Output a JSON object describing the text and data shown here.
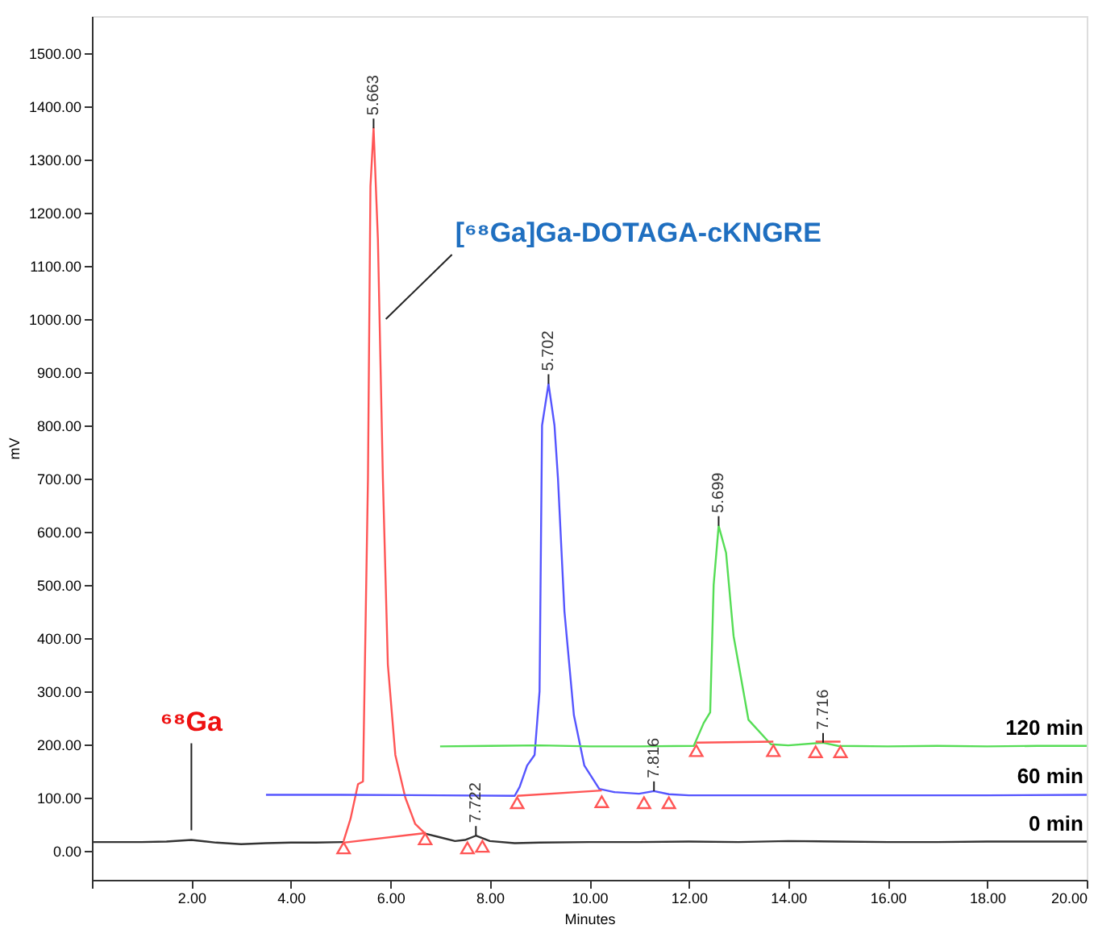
{
  "chart_data": {
    "type": "line",
    "xlabel": "Minutes",
    "ylabel": "mV",
    "xlim": [
      0,
      20
    ],
    "ylim": [
      -55,
      1570
    ],
    "xticks": [
      {
        "value": 0,
        "label": null
      },
      {
        "value": 2,
        "label": "2.00"
      },
      {
        "value": 4,
        "label": "4.00"
      },
      {
        "value": 6,
        "label": "6.00"
      },
      {
        "value": 8,
        "label": "8.00"
      },
      {
        "value": 10,
        "label": "10.00"
      },
      {
        "value": 12,
        "label": "12.00"
      },
      {
        "value": 14,
        "label": "14.00"
      },
      {
        "value": 16,
        "label": "16.00"
      },
      {
        "value": 18,
        "label": "18.00"
      },
      {
        "value": 20,
        "label": "20.00"
      }
    ],
    "yticks": [
      {
        "value": 0,
        "label": "0.00"
      },
      {
        "value": 100,
        "label": "100.00"
      },
      {
        "value": 200,
        "label": "200.00"
      },
      {
        "value": 300,
        "label": "300.00"
      },
      {
        "value": 400,
        "label": "400.00"
      },
      {
        "value": 500,
        "label": "500.00"
      },
      {
        "value": 600,
        "label": "600.00"
      },
      {
        "value": 700,
        "label": "700.00"
      },
      {
        "value": 800,
        "label": "800.00"
      },
      {
        "value": 900,
        "label": "900.00"
      },
      {
        "value": 1000,
        "label": "1000.00"
      },
      {
        "value": 1100,
        "label": "1100.00"
      },
      {
        "value": 1200,
        "label": "1200.00"
      },
      {
        "value": 1300,
        "label": "1300.00"
      },
      {
        "value": 1400,
        "label": "1400.00"
      },
      {
        "value": 1500,
        "label": "1500.00"
      }
    ],
    "grid": false,
    "line_style": "solid",
    "series": [
      {
        "name": "0 min",
        "color": "#333333",
        "x": [
          0,
          0.5,
          1,
          1.5,
          2,
          2.5,
          3,
          3.5,
          4,
          4.5,
          5.06,
          5.8,
          6.7,
          7.0,
          7.3,
          7.5,
          7.72,
          8.0,
          8.5,
          9,
          10,
          11,
          12,
          13,
          14,
          15,
          16,
          17,
          18,
          19,
          20
        ],
        "values": [
          16,
          16,
          16,
          17,
          20,
          15,
          12,
          14,
          15,
          15,
          16,
          null,
          32,
          25,
          18,
          20,
          28,
          18,
          14,
          15,
          16,
          16,
          17,
          16,
          18,
          17,
          16,
          16,
          17,
          17,
          17
        ]
      },
      {
        "color": "#ff5555",
        "x": [
          5.06,
          5.2,
          5.35,
          5.45,
          5.55,
          5.6,
          5.663,
          5.75,
          5.85,
          5.95,
          6.1,
          6.3,
          6.5,
          6.7
        ],
        "values": [
          18,
          60,
          125,
          130,
          700,
          1250,
          1359,
          1150,
          700,
          350,
          180,
          100,
          50,
          32
        ]
      },
      {
        "name": "60 min",
        "color": "#5555ff",
        "x": [
          3.5,
          5,
          7,
          8.5,
          8.6,
          8.75,
          8.9,
          9.0,
          9.05,
          9.18,
          9.3,
          9.37,
          9.5,
          9.69,
          9.9,
          10.2,
          10.5,
          11,
          11.3,
          11.6,
          12,
          14,
          16,
          18,
          20
        ],
        "values": [
          105,
          105,
          104,
          103,
          120,
          160,
          180,
          300,
          800,
          878,
          800,
          700,
          450,
          255,
          160,
          116,
          110,
          107,
          112,
          106,
          104,
          104,
          104,
          104,
          105
        ]
      },
      {
        "name": "120 min",
        "color": "#55dd55",
        "x": [
          7,
          8,
          9,
          10,
          11,
          12.1,
          12.3,
          12.43,
          12.5,
          12.6,
          12.75,
          12.9,
          13.2,
          13.65,
          14,
          14.7,
          15,
          16,
          17,
          18,
          19,
          20
        ],
        "values": [
          196,
          197,
          198,
          196,
          196,
          197,
          240,
          260,
          500,
          611,
          560,
          404,
          246,
          200,
          198,
          203,
          197,
          196,
          197,
          196,
          197,
          197
        ]
      },
      {
        "color": "#ff5555",
        "x": [
          5.06,
          6.7,
          7.0,
          8.55,
          10.25,
          11.0,
          12.15,
          13.7,
          14.0,
          14.55,
          15.05
        ],
        "values": [
          15,
          33,
          null,
          103,
          113,
          null,
          203,
          205,
          null,
          205,
          205
        ]
      },
      {
        "type": "scatter",
        "marker": "triangle",
        "color": "#ff5555",
        "x": [
          5.06,
          6.7,
          7.55,
          7.85,
          8.55,
          10.25,
          11.1,
          11.6,
          12.15,
          13.7,
          14.55,
          15.05
        ],
        "values": [
          5,
          22,
          5,
          8,
          90,
          92,
          90,
          90,
          188,
          188,
          186,
          186
        ]
      }
    ],
    "annotations": [
      {
        "text": "[⁶⁸Ga]Ga-DOTAGA-cKNGRE",
        "x": 5.78,
        "y": 1000
      },
      {
        "text": "⁶⁸Ga",
        "x": 2.0,
        "y": 20
      },
      {
        "text": "5.663",
        "x": 5.663,
        "y": 1359
      },
      {
        "text": "7.722",
        "x": 7.72,
        "y": 28
      },
      {
        "text": "5.702",
        "x": 9.18,
        "y": 878
      },
      {
        "text": "7.816",
        "x": 11.3,
        "y": 112
      },
      {
        "text": "5.699",
        "x": 12.6,
        "y": 611
      },
      {
        "text": "7.716",
        "x": 14.7,
        "y": 203
      }
    ]
  }
}
